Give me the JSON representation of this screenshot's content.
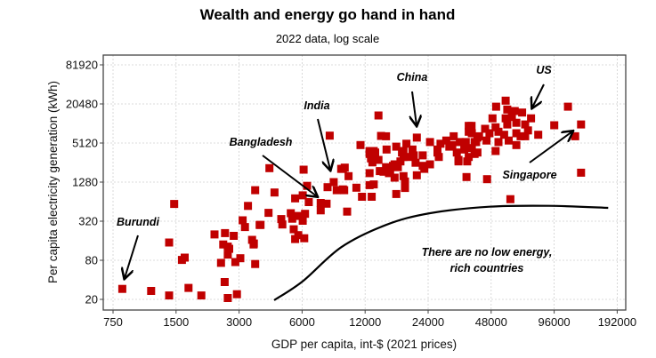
{
  "chart_data": {
    "type": "scatter",
    "title": "Wealth and energy go hand in hand",
    "subtitle": "2022 data, log scale",
    "xlabel": "GDP per capita, int-$ (2021 prices)",
    "ylabel": "Per capita electricity generation (kWh)",
    "xscale": "log2",
    "yscale": "log2",
    "xlim": [
      640,
      215000
    ],
    "ylim": [
      16,
      100000
    ],
    "grid": true,
    "xticks": [
      750,
      1500,
      3000,
      6000,
      12000,
      24000,
      48000,
      96000,
      192000
    ],
    "xtick_labels": [
      "750",
      "1500",
      "3000",
      "6000",
      "12000",
      "24000",
      "48000",
      "96000",
      "192000"
    ],
    "yticks": [
      20,
      80,
      320,
      1280,
      5120,
      20480,
      81920
    ],
    "ytick_labels": [
      "20",
      "80",
      "320",
      "1280",
      "5120",
      "20480",
      "81920"
    ],
    "marker_color": "#c00000",
    "points": [
      [
        830,
        29
      ],
      [
        1140,
        27
      ],
      [
        1390,
        23
      ],
      [
        1470,
        590
      ],
      [
        1390,
        150
      ],
      [
        1600,
        81
      ],
      [
        1650,
        88
      ],
      [
        1720,
        30
      ],
      [
        1980,
        23
      ],
      [
        2290,
        200
      ],
      [
        2570,
        210
      ],
      [
        2830,
        190
      ],
      [
        2520,
        140
      ],
      [
        2650,
        130
      ],
      [
        2690,
        120
      ],
      [
        2650,
        98
      ],
      [
        2460,
        73
      ],
      [
        2880,
        75
      ],
      [
        3040,
        86
      ],
      [
        2560,
        37
      ],
      [
        2650,
        21
      ],
      [
        2930,
        24
      ],
      [
        3580,
        960
      ],
      [
        3310,
        550
      ],
      [
        3120,
        330
      ],
      [
        3200,
        260
      ],
      [
        3760,
        280
      ],
      [
        3460,
        165
      ],
      [
        3530,
        145
      ],
      [
        3580,
        70
      ],
      [
        8130,
        6650
      ],
      [
        11400,
        4760
      ],
      [
        4190,
        2100
      ],
      [
        6100,
        1990
      ],
      [
        9220,
        2050
      ],
      [
        9590,
        2140
      ],
      [
        10000,
        1580
      ],
      [
        12600,
        1760
      ],
      [
        14100,
        1890
      ],
      [
        12600,
        3480
      ],
      [
        13200,
        3850
      ],
      [
        13000,
        2810
      ],
      [
        13900,
        2810
      ],
      [
        14300,
        6590
      ],
      [
        4430,
        885
      ],
      [
        6340,
        1120
      ],
      [
        7940,
        1070
      ],
      [
        8490,
        1280
      ],
      [
        8780,
        960
      ],
      [
        9530,
        960
      ],
      [
        10900,
        1050
      ],
      [
        12600,
        1150
      ],
      [
        13200,
        1180
      ],
      [
        11600,
        760
      ],
      [
        12900,
        760
      ],
      [
        5560,
        720
      ],
      [
        6040,
        800
      ],
      [
        6460,
        630
      ],
      [
        7360,
        610
      ],
      [
        7850,
        595
      ],
      [
        7360,
        470
      ],
      [
        9850,
        450
      ],
      [
        4150,
        430
      ],
      [
        5300,
        425
      ],
      [
        6200,
        415
      ],
      [
        5750,
        385
      ],
      [
        4770,
        345
      ],
      [
        4830,
        285
      ],
      [
        5380,
        350
      ],
      [
        6040,
        325
      ],
      [
        3800,
        280
      ],
      [
        5470,
        240
      ],
      [
        5750,
        195
      ],
      [
        6140,
        175
      ],
      [
        5560,
        170
      ],
      [
        3520,
        140
      ],
      [
        13900,
        13600
      ],
      [
        15100,
        6500
      ],
      [
        21200,
        6200
      ],
      [
        15200,
        4070
      ],
      [
        16900,
        4500
      ],
      [
        18900,
        5000
      ],
      [
        18000,
        3660
      ],
      [
        20200,
        4070
      ],
      [
        18300,
        3120
      ],
      [
        20500,
        3300
      ],
      [
        22600,
        3300
      ],
      [
        12600,
        3850
      ],
      [
        13400,
        3660
      ],
      [
        12800,
        2970
      ],
      [
        13600,
        2810
      ],
      [
        24500,
        5300
      ],
      [
        26600,
        4070
      ],
      [
        27500,
        5000
      ],
      [
        29300,
        5600
      ],
      [
        31800,
        6500
      ],
      [
        31300,
        4760
      ],
      [
        34000,
        5300
      ],
      [
        32900,
        3660
      ],
      [
        35700,
        4070
      ],
      [
        37500,
        3120
      ],
      [
        38100,
        8900
      ],
      [
        38800,
        7240
      ],
      [
        40700,
        5300
      ],
      [
        27000,
        3120
      ],
      [
        33500,
        2810
      ],
      [
        36900,
        2670
      ],
      [
        20900,
        2540
      ],
      [
        22600,
        2280
      ],
      [
        24500,
        2400
      ],
      [
        15100,
        2170
      ],
      [
        16300,
        2280
      ],
      [
        17200,
        2170
      ],
      [
        15600,
        1760
      ],
      [
        16600,
        1500
      ],
      [
        18300,
        1580
      ],
      [
        21200,
        1630
      ],
      [
        18600,
        1210
      ],
      [
        18600,
        1040
      ],
      [
        16900,
        840
      ],
      [
        36600,
        1530
      ],
      [
        56300,
        23000
      ],
      [
        50700,
        18600
      ],
      [
        57300,
        16800
      ],
      [
        62200,
        15900
      ],
      [
        67500,
        15100
      ],
      [
        48700,
        12300
      ],
      [
        56300,
        12300
      ],
      [
        60300,
        12900
      ],
      [
        74400,
        12300
      ],
      [
        37500,
        9400
      ],
      [
        38700,
        9400
      ],
      [
        44900,
        8480
      ],
      [
        50400,
        8940
      ],
      [
        57300,
        9900
      ],
      [
        63300,
        10500
      ],
      [
        69800,
        9900
      ],
      [
        72000,
        8000
      ],
      [
        37500,
        7640
      ],
      [
        42000,
        6500
      ],
      [
        47100,
        7240
      ],
      [
        52000,
        7640
      ],
      [
        55400,
        6860
      ],
      [
        63300,
        7240
      ],
      [
        66400,
        6500
      ],
      [
        69800,
        6500
      ],
      [
        80600,
        6860
      ],
      [
        36300,
        5300
      ],
      [
        40000,
        5300
      ],
      [
        45600,
        5600
      ],
      [
        52000,
        5300
      ],
      [
        58200,
        5600
      ],
      [
        63300,
        4760
      ],
      [
        38800,
        4280
      ],
      [
        40000,
        3480
      ],
      [
        50400,
        3850
      ],
      [
        111700,
        18600
      ],
      [
        96100,
        9600
      ],
      [
        129000,
        9900
      ],
      [
        121000,
        6500
      ],
      [
        45900,
        1420
      ],
      [
        129000,
        1790
      ],
      [
        59300,
        700
      ],
      [
        9400,
        990
      ],
      [
        13000,
        2580
      ],
      [
        14700,
        1850
      ],
      [
        16600,
        2400
      ],
      [
        15800,
        1850
      ],
      [
        18600,
        1310
      ],
      [
        23000,
        2050
      ],
      [
        33500,
        2670
      ],
      [
        19200,
        3120
      ],
      [
        17700,
        2670
      ],
      [
        30300,
        4500
      ],
      [
        41300,
        6200
      ],
      [
        41300,
        3660
      ],
      [
        26600,
        3660
      ],
      [
        18300,
        3850
      ],
      [
        9400,
        2050
      ]
    ],
    "boundary_curve": [
      [
        4410,
        19.4
      ],
      [
        6040,
        38
      ],
      [
        9220,
        127
      ],
      [
        15100,
        280
      ],
      [
        24500,
        425
      ],
      [
        47100,
        535
      ],
      [
        90600,
        552
      ],
      [
        174000,
        513
      ]
    ],
    "annotations": [
      {
        "label": "Burundi"
      },
      {
        "label": "Bangladesh"
      },
      {
        "label": "India"
      },
      {
        "label": "China"
      },
      {
        "label": "US"
      },
      {
        "label": "Singapore"
      }
    ],
    "region_note_line1": "There are no low energy,",
    "region_note_line2": "rich countries"
  }
}
